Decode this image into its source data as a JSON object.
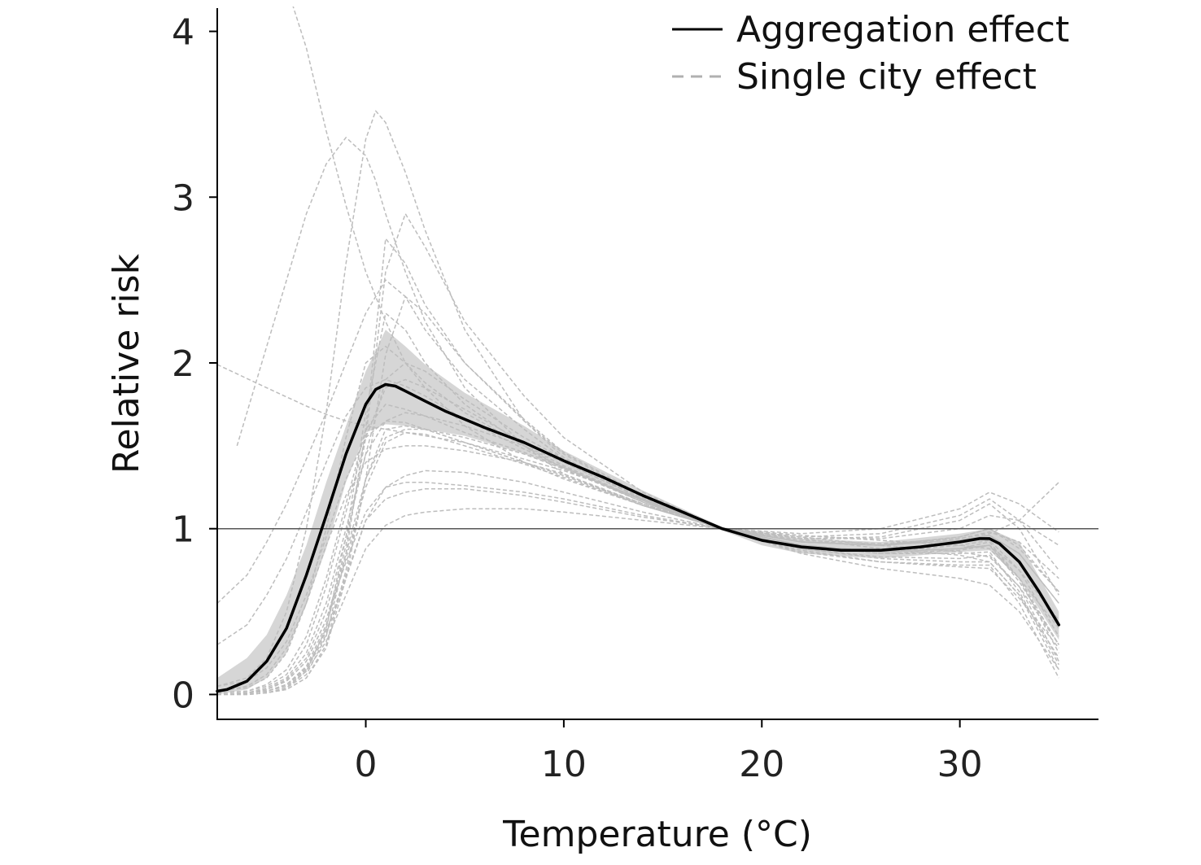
{
  "chart_data": {
    "type": "line",
    "title": "",
    "xlabel": "Temperature (°C)",
    "ylabel": "Relative risk",
    "xlim": [
      -7.5,
      37
    ],
    "ylim": [
      -0.15,
      4.15
    ],
    "xticks": [
      0,
      10,
      20,
      30
    ],
    "yticks": [
      0,
      1,
      2,
      3,
      4
    ],
    "reference_line": 1,
    "grid": false,
    "legend": "top-right",
    "legend_entries": [
      {
        "label": "Aggregation effect",
        "style": "solid",
        "color": "#000000"
      },
      {
        "label": "Single city effect",
        "style": "dashed",
        "color": "#b0b0b0"
      }
    ],
    "aggregate": {
      "name": "Aggregation effect",
      "color": "#000000",
      "x": [
        -7.5,
        -7,
        -6,
        -5,
        -4,
        -3,
        -2,
        -1,
        0,
        0.5,
        1,
        1.5,
        2,
        3,
        4,
        5,
        6,
        8,
        10,
        12,
        14,
        16,
        18,
        20,
        22,
        24,
        26,
        28,
        30,
        31,
        31.5,
        32,
        33,
        34,
        35
      ],
      "y": [
        0.02,
        0.03,
        0.08,
        0.2,
        0.4,
        0.72,
        1.08,
        1.45,
        1.75,
        1.84,
        1.87,
        1.86,
        1.83,
        1.77,
        1.71,
        1.66,
        1.61,
        1.52,
        1.41,
        1.31,
        1.2,
        1.1,
        1.0,
        0.93,
        0.89,
        0.87,
        0.87,
        0.89,
        0.92,
        0.94,
        0.94,
        0.91,
        0.8,
        0.62,
        0.42
      ]
    },
    "confidence_band": {
      "color": "#d6d6d6",
      "x": [
        -7.5,
        -6,
        -5,
        -4,
        -3,
        -2,
        -1,
        0,
        1,
        2,
        3,
        5,
        8,
        10,
        14,
        18,
        20,
        22,
        26,
        30,
        31.5,
        33,
        35
      ],
      "lower": [
        0.0,
        0.03,
        0.1,
        0.25,
        0.55,
        0.88,
        1.28,
        1.58,
        1.63,
        1.62,
        1.6,
        1.56,
        1.45,
        1.36,
        1.17,
        0.99,
        0.9,
        0.85,
        0.82,
        0.86,
        0.87,
        0.7,
        0.33
      ],
      "upper": [
        0.1,
        0.22,
        0.36,
        0.6,
        0.9,
        1.28,
        1.62,
        1.95,
        2.2,
        2.1,
        1.99,
        1.82,
        1.62,
        1.47,
        1.23,
        1.01,
        0.97,
        0.94,
        0.92,
        0.97,
        1.0,
        0.92,
        0.5
      ]
    },
    "city_curves": [
      {
        "x": [
          -6.5,
          -5,
          -4,
          -3,
          -2,
          -1,
          0,
          0.5,
          1,
          2,
          3,
          5,
          8,
          10,
          14,
          18,
          22,
          26,
          30,
          31.5,
          33,
          35
        ],
        "y": [
          1.5,
          2.1,
          2.5,
          2.9,
          3.2,
          3.36,
          3.25,
          3.1,
          2.9,
          2.55,
          2.25,
          1.85,
          1.5,
          1.33,
          1.14,
          1.0,
          0.92,
          0.9,
          0.93,
          0.96,
          0.85,
          0.55
        ]
      },
      {
        "x": [
          -3.8,
          -3,
          -2,
          -1,
          0,
          0.5,
          1,
          2,
          3,
          5,
          8,
          10,
          14,
          18,
          22,
          26,
          30,
          31.5,
          33,
          35
        ],
        "y": [
          4.2,
          3.9,
          3.4,
          2.95,
          2.55,
          2.4,
          2.25,
          2.0,
          1.85,
          1.62,
          1.4,
          1.3,
          1.14,
          1.0,
          0.93,
          0.91,
          0.94,
          0.98,
          0.92,
          0.7
        ]
      },
      {
        "x": [
          -7.5,
          -6,
          -5,
          -4,
          -3,
          -2,
          -1,
          0,
          0.5,
          1,
          2,
          3,
          5,
          8,
          10,
          14,
          18,
          22,
          26,
          30,
          31.5,
          33,
          35
        ],
        "y": [
          0.05,
          0.1,
          0.22,
          0.5,
          1.0,
          1.7,
          2.6,
          3.35,
          3.52,
          3.45,
          3.15,
          2.8,
          2.2,
          1.65,
          1.43,
          1.17,
          1.0,
          0.92,
          0.9,
          0.93,
          0.96,
          0.85,
          0.55
        ]
      },
      {
        "x": [
          -7.5,
          -5,
          -3,
          -2,
          -1,
          0,
          1,
          2,
          3,
          5,
          8,
          10,
          14,
          18,
          22,
          26,
          30,
          31.5,
          33,
          35
        ],
        "y": [
          1.99,
          1.85,
          1.74,
          1.69,
          1.65,
          1.62,
          1.6,
          1.58,
          1.56,
          1.52,
          1.42,
          1.35,
          1.18,
          1.0,
          0.92,
          0.9,
          0.94,
          0.97,
          1.05,
          1.28
        ]
      },
      {
        "x": [
          -7.5,
          -6,
          -5,
          -4,
          -3,
          -2,
          -1,
          0,
          1,
          2,
          3,
          5,
          8,
          10,
          14,
          18,
          22,
          26,
          30,
          31.5,
          33,
          35
        ],
        "y": [
          0.55,
          0.72,
          0.92,
          1.15,
          1.42,
          1.7,
          2.0,
          2.3,
          2.5,
          2.4,
          2.2,
          1.9,
          1.6,
          1.42,
          1.18,
          1.0,
          0.94,
          0.94,
          1.0,
          1.08,
          1.05,
          0.9
        ]
      },
      {
        "x": [
          -7.5,
          -6,
          -5,
          -4,
          -3,
          -2,
          -1,
          0,
          1,
          2,
          3,
          5,
          8,
          10,
          14,
          18,
          22,
          26,
          30,
          31.5,
          33,
          35
        ],
        "y": [
          0.0,
          0.01,
          0.02,
          0.06,
          0.15,
          0.4,
          0.95,
          1.7,
          2.3,
          2.2,
          2.0,
          1.75,
          1.5,
          1.36,
          1.16,
          1.0,
          0.9,
          0.86,
          0.88,
          0.9,
          0.7,
          0.25
        ]
      },
      {
        "x": [
          -7.5,
          -6,
          -5,
          -4,
          -3,
          -2,
          -1,
          0,
          1,
          2,
          3,
          5,
          8,
          10,
          14,
          18,
          22,
          26,
          30,
          31.5,
          33,
          35
        ],
        "y": [
          0.02,
          0.04,
          0.1,
          0.25,
          0.55,
          1.0,
          1.55,
          2.0,
          2.1,
          2.0,
          1.88,
          1.7,
          1.5,
          1.38,
          1.17,
          1.0,
          0.88,
          0.83,
          0.82,
          0.84,
          0.65,
          0.2
        ]
      },
      {
        "x": [
          -7.5,
          -6,
          -5,
          -4,
          -3,
          -2,
          -1,
          0,
          1,
          2,
          3,
          5,
          8,
          10,
          14,
          18,
          22,
          26,
          30,
          31.5,
          33,
          35
        ],
        "y": [
          0.01,
          0.02,
          0.05,
          0.12,
          0.3,
          0.65,
          1.1,
          1.55,
          1.85,
          1.9,
          1.85,
          1.72,
          1.52,
          1.4,
          1.18,
          1.0,
          0.9,
          0.86,
          0.9,
          0.93,
          0.75,
          0.35
        ]
      },
      {
        "x": [
          -7.5,
          -6,
          -5,
          -4,
          -3,
          -2,
          -1,
          0,
          1,
          2,
          3,
          5,
          8,
          10,
          14,
          18,
          22,
          26,
          30,
          31.5,
          33,
          35
        ],
        "y": [
          0.0,
          0.01,
          0.03,
          0.08,
          0.2,
          0.45,
          0.8,
          1.1,
          1.25,
          1.28,
          1.28,
          1.26,
          1.22,
          1.18,
          1.08,
          1.0,
          0.96,
          0.93,
          0.9,
          0.88,
          0.7,
          0.4
        ]
      },
      {
        "x": [
          -7.5,
          -6,
          -5,
          -4,
          -3,
          -2,
          -1,
          0,
          1,
          2,
          3,
          5,
          8,
          10,
          14,
          18,
          22,
          26,
          30,
          31.5,
          33,
          35
        ],
        "y": [
          0.0,
          0.01,
          0.02,
          0.05,
          0.14,
          0.32,
          0.6,
          0.88,
          1.02,
          1.08,
          1.1,
          1.12,
          1.12,
          1.1,
          1.05,
          1.0,
          0.95,
          0.9,
          0.86,
          0.83,
          0.65,
          0.3
        ]
      },
      {
        "x": [
          -7.5,
          -6,
          -5,
          -4,
          -3,
          -2,
          -1,
          0,
          1,
          2,
          3,
          5,
          8,
          10,
          14,
          18,
          22,
          26,
          30,
          31.5,
          33,
          35
        ],
        "y": [
          0.0,
          0.01,
          0.02,
          0.06,
          0.16,
          0.38,
          0.72,
          1.05,
          1.18,
          1.22,
          1.24,
          1.24,
          1.2,
          1.16,
          1.07,
          1.0,
          0.94,
          0.88,
          0.84,
          0.8,
          0.6,
          0.15
        ]
      },
      {
        "x": [
          -7.5,
          -6,
          -5,
          -4,
          -3,
          -2,
          -1,
          0,
          1,
          2,
          3,
          5,
          8,
          10,
          14,
          18,
          22,
          26,
          30,
          31.5,
          33,
          35
        ],
        "y": [
          0.0,
          0.0,
          0.01,
          0.03,
          0.1,
          0.3,
          0.75,
          1.3,
          1.55,
          1.6,
          1.6,
          1.55,
          1.45,
          1.36,
          1.17,
          1.0,
          0.86,
          0.8,
          0.78,
          0.78,
          0.55,
          0.1
        ]
      },
      {
        "x": [
          -7.5,
          -6,
          -5,
          -4,
          -3,
          -2,
          -1,
          0,
          1,
          2,
          3,
          5,
          8,
          10,
          14,
          18,
          22,
          26,
          30,
          31.5,
          33,
          35
        ],
        "y": [
          0.05,
          0.08,
          0.16,
          0.32,
          0.6,
          0.95,
          1.3,
          1.55,
          1.65,
          1.64,
          1.6,
          1.52,
          1.4,
          1.32,
          1.15,
          1.0,
          0.94,
          0.95,
          1.05,
          1.15,
          1.0,
          0.6
        ]
      },
      {
        "x": [
          -7.5,
          -6,
          -5,
          -4,
          -3,
          -2,
          -1,
          0,
          1,
          2,
          3,
          5,
          8,
          10,
          14,
          18,
          22,
          26,
          30,
          31.5,
          33,
          35
        ],
        "y": [
          0.01,
          0.02,
          0.06,
          0.15,
          0.35,
          0.7,
          1.15,
          1.6,
          1.75,
          1.72,
          1.68,
          1.58,
          1.46,
          1.37,
          1.17,
          1.0,
          0.9,
          0.85,
          0.87,
          0.9,
          0.75,
          0.45
        ]
      },
      {
        "x": [
          -7.5,
          -6,
          -5,
          -4,
          -3,
          -2,
          -1,
          0,
          1,
          2,
          3,
          5,
          8,
          10,
          14,
          18,
          22,
          26,
          30,
          31.5,
          33,
          35
        ],
        "y": [
          0.0,
          0.01,
          0.04,
          0.1,
          0.25,
          0.55,
          1.0,
          1.45,
          1.65,
          1.7,
          1.68,
          1.62,
          1.5,
          1.4,
          1.18,
          1.0,
          0.87,
          0.8,
          0.77,
          0.76,
          0.58,
          0.28
        ]
      },
      {
        "x": [
          -7.5,
          -6,
          -5,
          -4,
          -3,
          -2,
          -1,
          0,
          1,
          2,
          3,
          5,
          8,
          10,
          14,
          18,
          22,
          26,
          30,
          31.5,
          33,
          35
        ],
        "y": [
          0.02,
          0.05,
          0.12,
          0.28,
          0.55,
          0.9,
          1.2,
          1.4,
          1.48,
          1.5,
          1.5,
          1.47,
          1.4,
          1.33,
          1.15,
          1.0,
          0.92,
          0.9,
          0.95,
          1.0,
          0.88,
          0.62
        ]
      },
      {
        "x": [
          -7.5,
          -6,
          -5,
          -4,
          -3,
          -2,
          -1,
          0,
          1,
          2,
          3,
          5,
          8,
          10,
          14,
          18,
          22,
          26,
          30,
          31.5,
          33,
          35
        ],
        "y": [
          0.0,
          0.01,
          0.03,
          0.09,
          0.22,
          0.5,
          0.95,
          1.45,
          1.9,
          2.0,
          1.95,
          1.78,
          1.55,
          1.42,
          1.19,
          1.0,
          0.88,
          0.82,
          0.8,
          0.8,
          0.6,
          0.22
        ]
      },
      {
        "x": [
          -7.5,
          -6,
          -5,
          -4,
          -3,
          -2,
          -1,
          0,
          1,
          2,
          3,
          5,
          8,
          10,
          14,
          18,
          22,
          26,
          30,
          31.5,
          33,
          35
        ],
        "y": [
          0.0,
          0.0,
          0.01,
          0.04,
          0.12,
          0.35,
          0.85,
          1.6,
          2.75,
          2.6,
          2.35,
          2.0,
          1.65,
          1.45,
          1.19,
          1.0,
          0.9,
          0.86,
          0.88,
          0.9,
          0.68,
          0.3
        ]
      },
      {
        "x": [
          -7.5,
          -6,
          -5,
          -4,
          -3,
          -2,
          -1,
          0,
          1,
          2,
          3,
          5,
          8,
          10,
          14,
          18,
          22,
          26,
          30,
          31.5,
          33,
          35
        ],
        "y": [
          0.3,
          0.42,
          0.6,
          0.82,
          1.1,
          1.4,
          1.68,
          1.85,
          1.9,
          1.86,
          1.8,
          1.66,
          1.48,
          1.37,
          1.16,
          1.0,
          0.92,
          0.9,
          0.95,
          1.0,
          0.9,
          0.62
        ]
      },
      {
        "x": [
          -7.5,
          -6,
          -5,
          -4,
          -3,
          -2,
          -1,
          0,
          1,
          2,
          3,
          5,
          8,
          10,
          14,
          18,
          22,
          26,
          30,
          31.5,
          33,
          35
        ],
        "y": [
          0.0,
          0.01,
          0.02,
          0.06,
          0.15,
          0.36,
          0.7,
          1.05,
          1.25,
          1.32,
          1.35,
          1.34,
          1.28,
          1.22,
          1.1,
          1.0,
          0.97,
          1.0,
          1.12,
          1.22,
          1.15,
          0.98
        ]
      },
      {
        "x": [
          -7.5,
          -6,
          -5,
          -4,
          -3,
          -2,
          -1,
          0,
          1,
          2,
          3,
          5,
          8,
          10,
          14,
          18,
          22,
          26,
          30,
          31.5,
          33,
          35
        ],
        "y": [
          0.0,
          0.01,
          0.03,
          0.08,
          0.2,
          0.45,
          0.85,
          1.3,
          1.6,
          1.62,
          1.6,
          1.52,
          1.4,
          1.32,
          1.14,
          1.0,
          0.95,
          0.97,
          1.08,
          1.18,
          1.05,
          0.75
        ]
      },
      {
        "x": [
          -7.5,
          -6,
          -5,
          -4,
          -3,
          -2,
          -1,
          0,
          1,
          2,
          3,
          5,
          8,
          10,
          14,
          18,
          22,
          26,
          30,
          31.5,
          33,
          35
        ],
        "y": [
          0.0,
          0.0,
          0.01,
          0.03,
          0.1,
          0.28,
          0.7,
          1.3,
          2.05,
          2.4,
          2.3,
          2.0,
          1.66,
          1.46,
          1.2,
          1.0,
          0.9,
          0.85,
          0.85,
          0.86,
          0.62,
          0.18
        ]
      },
      {
        "x": [
          -7.5,
          -6,
          -5,
          -4,
          -3,
          -2,
          -1,
          0,
          1,
          2,
          3,
          5,
          8,
          10,
          14,
          18,
          22,
          26,
          30,
          31.5,
          33,
          35
        ],
        "y": [
          0.0,
          0.0,
          0.01,
          0.04,
          0.14,
          0.4,
          0.9,
          1.55,
          2.55,
          2.9,
          2.7,
          2.25,
          1.8,
          1.55,
          1.22,
          1.0,
          0.9,
          0.86,
          0.88,
          0.92,
          0.7,
          0.3
        ]
      },
      {
        "x": [
          -7.5,
          -6,
          -5,
          -4,
          -3,
          -2,
          -1,
          0,
          1,
          2,
          3,
          5,
          8,
          10,
          14,
          18,
          22,
          26,
          30,
          31.5,
          33,
          35
        ],
        "y": [
          0.0,
          0.01,
          0.02,
          0.06,
          0.17,
          0.42,
          0.82,
          1.25,
          1.52,
          1.58,
          1.57,
          1.5,
          1.39,
          1.31,
          1.14,
          1.0,
          0.85,
          0.76,
          0.7,
          0.66,
          0.5,
          0.15
        ]
      }
    ]
  }
}
